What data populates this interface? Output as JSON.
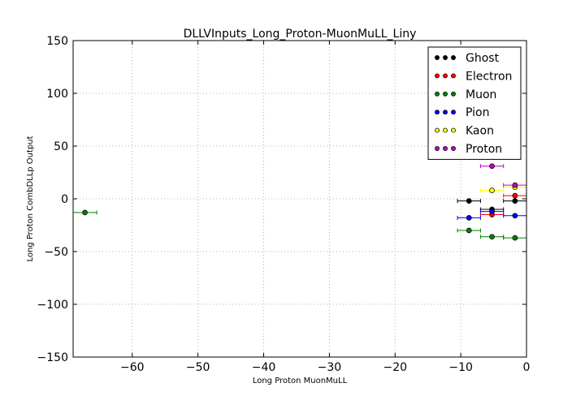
{
  "chart_data": {
    "type": "scatter",
    "title": "DLLVInputs_Long_Proton-MuonMuLL_Liny",
    "xlabel": "Long Proton MuonMuLL",
    "ylabel": "Long Proton CombDLLp Output",
    "xlim": [
      -69,
      0
    ],
    "ylim": [
      -150,
      150
    ],
    "xticks": [
      -60,
      -50,
      -40,
      -30,
      -20,
      -10,
      0
    ],
    "xtick_labels": [
      "−60",
      "−50",
      "−40",
      "−30",
      "−20",
      "−10",
      "0"
    ],
    "yticks": [
      -150,
      -100,
      -50,
      0,
      50,
      100,
      150
    ],
    "ytick_labels": [
      "−150",
      "−100",
      "−50",
      "0",
      "50",
      "100",
      "150"
    ],
    "grid": true,
    "legend_position": "top-right",
    "series": [
      {
        "name": "Ghost",
        "color": "#000000",
        "points": [
          {
            "x": -8.75,
            "y": -2,
            "xerr": 1.75
          },
          {
            "x": -5.25,
            "y": -10,
            "xerr": 1.75
          },
          {
            "x": -1.75,
            "y": -2,
            "xerr": 1.75
          }
        ]
      },
      {
        "name": "Electron",
        "color": "#ff0000",
        "points": [
          {
            "x": -5.25,
            "y": -15,
            "xerr": 1.75
          },
          {
            "x": -1.75,
            "y": 3,
            "xerr": 1.75
          }
        ]
      },
      {
        "name": "Muon",
        "color": "#008000",
        "points": [
          {
            "x": -67.2,
            "y": -13,
            "xerr": 1.8
          },
          {
            "x": -8.75,
            "y": -30,
            "xerr": 1.75
          },
          {
            "x": -5.25,
            "y": -36,
            "xerr": 1.75
          },
          {
            "x": -1.75,
            "y": -37,
            "xerr": 1.75
          }
        ]
      },
      {
        "name": "Pion",
        "color": "#0000ff",
        "points": [
          {
            "x": -8.75,
            "y": -18,
            "xerr": 1.75
          },
          {
            "x": -5.25,
            "y": -12,
            "xerr": 1.75
          },
          {
            "x": -1.75,
            "y": -16,
            "xerr": 1.75
          }
        ]
      },
      {
        "name": "Kaon",
        "color": "#ffff00",
        "points": [
          {
            "x": -5.25,
            "y": 8,
            "xerr": 1.75
          },
          {
            "x": -1.75,
            "y": 11,
            "xerr": 1.75
          }
        ]
      },
      {
        "name": "Proton",
        "color": "#bf00bf",
        "points": [
          {
            "x": -5.25,
            "y": 31,
            "xerr": 1.75
          },
          {
            "x": -1.75,
            "y": 13,
            "xerr": 1.75
          }
        ]
      }
    ]
  }
}
